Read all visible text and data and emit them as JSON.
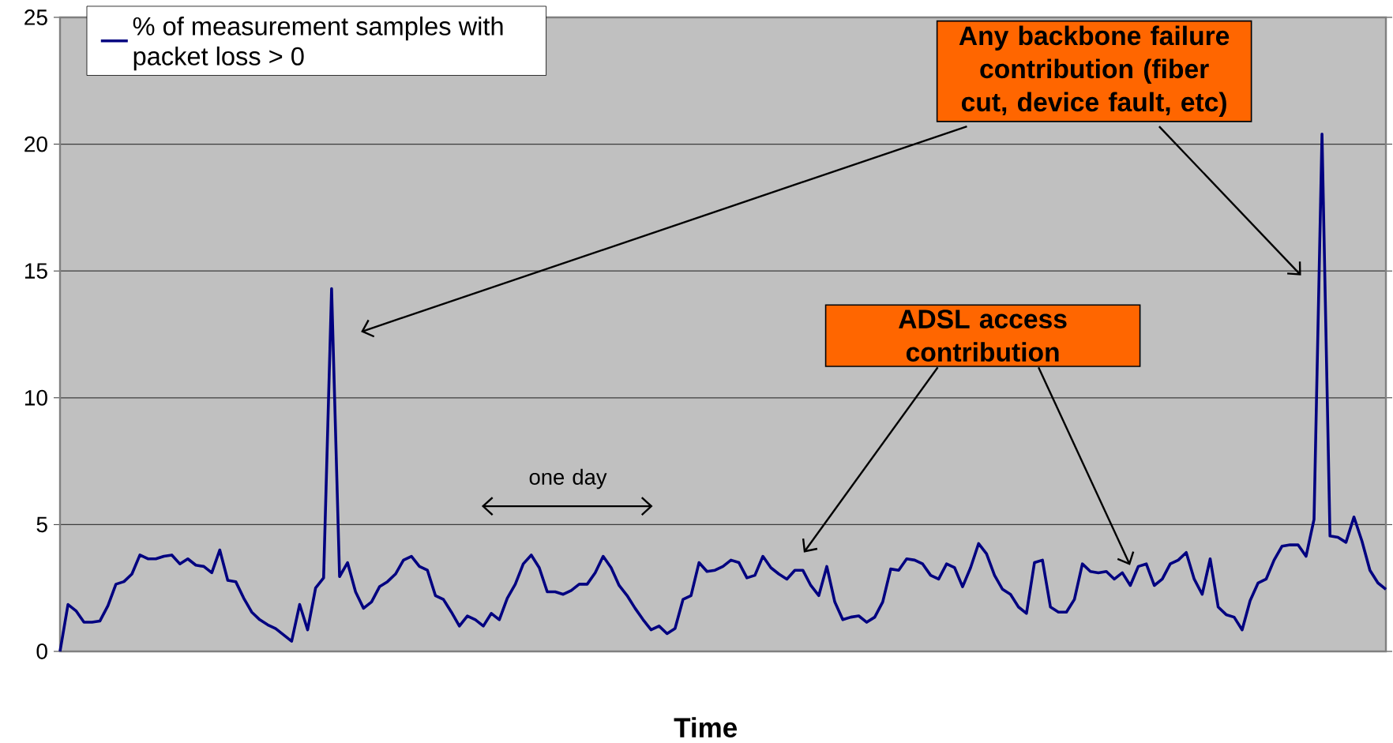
{
  "chart_data": {
    "type": "line",
    "xlabel": "Time",
    "categories": [
      null,
      null,
      null,
      null,
      null,
      null,
      null,
      null,
      null,
      null,
      null,
      null,
      null,
      null,
      null,
      null,
      null,
      null,
      null,
      null,
      null,
      null,
      null,
      null,
      null,
      null,
      null,
      null,
      null,
      null,
      null,
      null,
      null,
      null,
      null,
      null,
      null,
      null,
      null,
      null,
      null,
      null,
      null,
      null,
      null,
      null,
      null,
      null,
      null,
      null,
      null,
      null,
      null,
      null,
      null,
      null,
      null,
      null,
      null,
      null,
      null,
      null,
      null,
      null,
      null,
      null,
      null,
      null,
      null,
      null,
      null,
      null,
      null,
      null,
      null,
      null,
      null,
      null,
      null,
      null,
      null,
      null,
      null,
      null,
      null,
      null,
      null,
      null,
      null,
      null,
      null,
      null,
      null,
      null,
      null,
      null,
      null,
      null,
      null,
      null,
      null,
      null,
      null,
      null,
      null,
      null,
      null,
      null,
      null,
      null,
      null,
      null,
      null,
      null,
      null,
      null,
      null,
      null,
      null,
      null,
      null,
      null,
      null,
      null,
      null,
      null,
      null,
      null,
      null,
      null,
      null,
      null,
      null,
      null,
      null,
      null,
      null,
      null,
      null,
      null,
      null,
      null,
      null,
      null,
      null,
      null,
      null,
      null,
      null,
      null,
      null,
      null,
      null,
      null,
      null,
      null,
      null,
      null,
      null,
      null,
      null,
      null,
      null,
      null,
      null,
      null,
      null
    ],
    "series": [
      {
        "name": "% of measurement samples with packet loss > 0",
        "color": "#000080",
        "values": [
          0,
          1.85,
          1.6,
          1.15,
          1.15,
          1.2,
          1.8,
          2.65,
          2.75,
          3.05,
          3.8,
          3.65,
          3.65,
          3.75,
          3.8,
          3.45,
          3.65,
          3.4,
          3.35,
          3.1,
          4.0,
          2.8,
          2.75,
          2.1,
          1.55,
          1.25,
          1.05,
          0.9,
          0.65,
          0.4,
          1.85,
          0.85,
          2.5,
          2.9,
          14.3,
          2.95,
          3.5,
          2.35,
          1.7,
          1.95,
          2.55,
          2.75,
          3.05,
          3.6,
          3.75,
          3.35,
          3.2,
          2.2,
          2.05,
          1.55,
          1.0,
          1.4,
          1.25,
          1.0,
          1.5,
          1.25,
          2.1,
          2.65,
          3.45,
          3.8,
          3.3,
          2.35,
          2.35,
          2.25,
          2.4,
          2.65,
          2.65,
          3.1,
          3.75,
          3.3,
          2.6,
          2.2,
          1.7,
          1.25,
          0.85,
          1.0,
          0.7,
          0.9,
          2.05,
          2.2,
          3.5,
          3.15,
          3.2,
          3.35,
          3.6,
          3.5,
          2.9,
          3.0,
          3.75,
          3.3,
          3.05,
          2.85,
          3.2,
          3.2,
          2.6,
          2.2,
          3.35,
          1.95,
          1.25,
          1.35,
          1.4,
          1.15,
          1.35,
          1.95,
          3.25,
          3.2,
          3.65,
          3.6,
          3.45,
          3.0,
          2.85,
          3.45,
          3.3,
          2.55,
          3.3,
          4.25,
          3.85,
          3.0,
          2.45,
          2.25,
          1.75,
          1.5,
          3.5,
          3.6,
          1.75,
          1.55,
          1.55,
          2.05,
          3.45,
          3.15,
          3.1,
          3.15,
          2.85,
          3.1,
          2.6,
          3.35,
          3.45,
          2.6,
          2.85,
          3.45,
          3.6,
          3.9,
          2.85,
          2.25,
          3.65,
          1.75,
          1.45,
          1.35,
          0.85,
          2.0,
          2.7,
          2.85,
          3.6,
          4.15,
          4.2,
          4.2,
          3.75,
          5.2,
          20.4,
          4.55,
          4.5,
          4.3,
          5.3,
          4.35,
          3.2,
          2.7,
          2.45
        ]
      }
    ],
    "ylim": [
      0,
      25
    ],
    "yticks": [
      0,
      5,
      10,
      15,
      20,
      25
    ],
    "grid": "y",
    "legend": "top left",
    "marker": "none",
    "line_style": "solid",
    "annotations": [
      "Any backbone failure contribution (fiber cut, device fault, etc)",
      "ADSL access contribution",
      "one day"
    ]
  }
}
